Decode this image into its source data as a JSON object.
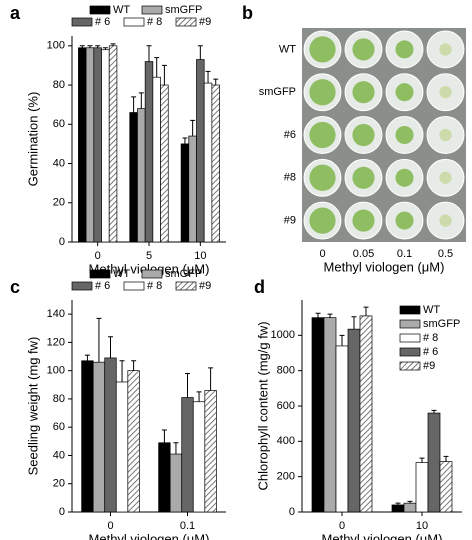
{
  "chart_data": [
    {
      "type": "bar",
      "panel_label": "a",
      "ylabel": "Germination (%)",
      "xlabel": "Methyl viologen (μM)",
      "categories": [
        "0",
        "5",
        "10"
      ],
      "ylim": [
        0,
        105
      ],
      "yticks": [
        0,
        20,
        40,
        60,
        80,
        100
      ],
      "legend": "top",
      "series": [
        {
          "name": "WT",
          "color": "#000000",
          "values": [
            99,
            66,
            50
          ],
          "errors": [
            1,
            8,
            3
          ]
        },
        {
          "name": "smGFP",
          "color": "#aaaaaa",
          "values": [
            99,
            68,
            54
          ],
          "errors": [
            1,
            8,
            8
          ]
        },
        {
          "name": "# 6",
          "color": "#666666",
          "values": [
            99,
            92,
            93
          ],
          "errors": [
            1,
            8,
            7
          ]
        },
        {
          "name": "# 8",
          "color": "#ffffff",
          "values": [
            98,
            84,
            81
          ],
          "errors": [
            1,
            10,
            6
          ]
        },
        {
          "name": "#9",
          "color": "#ffffff",
          "hatch": true,
          "values": [
            100,
            80,
            80
          ],
          "errors": [
            1,
            10,
            3
          ]
        }
      ]
    },
    {
      "type": "image",
      "panel_label": "b",
      "xlabel": "Methyl viologen (μM)",
      "rows": [
        "WT",
        "smGFP",
        "#6",
        "#8",
        "#9"
      ],
      "categories": [
        "0",
        "0.05",
        "0.1",
        "0.5"
      ]
    },
    {
      "type": "bar",
      "panel_label": "c",
      "ylabel": "Seedling weight (mg fw)",
      "xlabel": "Methyl viologen (μM)",
      "categories": [
        "0",
        "0.1"
      ],
      "ylim": [
        0,
        150
      ],
      "yticks": [
        0,
        20,
        40,
        60,
        80,
        100,
        120,
        140
      ],
      "legend": "top",
      "series": [
        {
          "name": "WT",
          "color": "#000000",
          "values": [
            107,
            49
          ],
          "errors": [
            4,
            9
          ]
        },
        {
          "name": "smGFP",
          "color": "#aaaaaa",
          "values": [
            106,
            41
          ],
          "errors": [
            31,
            8
          ]
        },
        {
          "name": "# 6",
          "color": "#666666",
          "values": [
            109,
            81
          ],
          "errors": [
            15,
            17
          ]
        },
        {
          "name": "# 8",
          "color": "#ffffff",
          "values": [
            92,
            78
          ],
          "errors": [
            15,
            7
          ]
        },
        {
          "name": "#9",
          "color": "#ffffff",
          "hatch": true,
          "values": [
            100,
            86
          ],
          "errors": [
            7,
            16
          ]
        }
      ]
    },
    {
      "type": "bar",
      "panel_label": "d",
      "ylabel": "Chlorophyll content (mg/g fw)",
      "xlabel": "Methyl viologen (μM)",
      "categories": [
        "0",
        "10"
      ],
      "ylim": [
        0,
        1200
      ],
      "yticks": [
        0,
        200,
        400,
        600,
        800,
        1000
      ],
      "legend": "upper right",
      "series": [
        {
          "name": "WT",
          "color": "#000000",
          "values": [
            1100,
            40
          ],
          "errors": [
            25,
            10
          ]
        },
        {
          "name": "smGFP",
          "color": "#aaaaaa",
          "values": [
            1100,
            50
          ],
          "errors": [
            20,
            10
          ]
        },
        {
          "name": "# 8",
          "color": "#ffffff",
          "values": [
            940,
            280
          ],
          "errors": [
            60,
            25
          ]
        },
        {
          "name": "# 6",
          "color": "#666666",
          "values": [
            1035,
            560
          ],
          "errors": [
            70,
            15
          ]
        },
        {
          "name": "#9",
          "color": "#ffffff",
          "hatch": true,
          "values": [
            1110,
            285
          ],
          "errors": [
            50,
            30
          ]
        }
      ]
    }
  ]
}
